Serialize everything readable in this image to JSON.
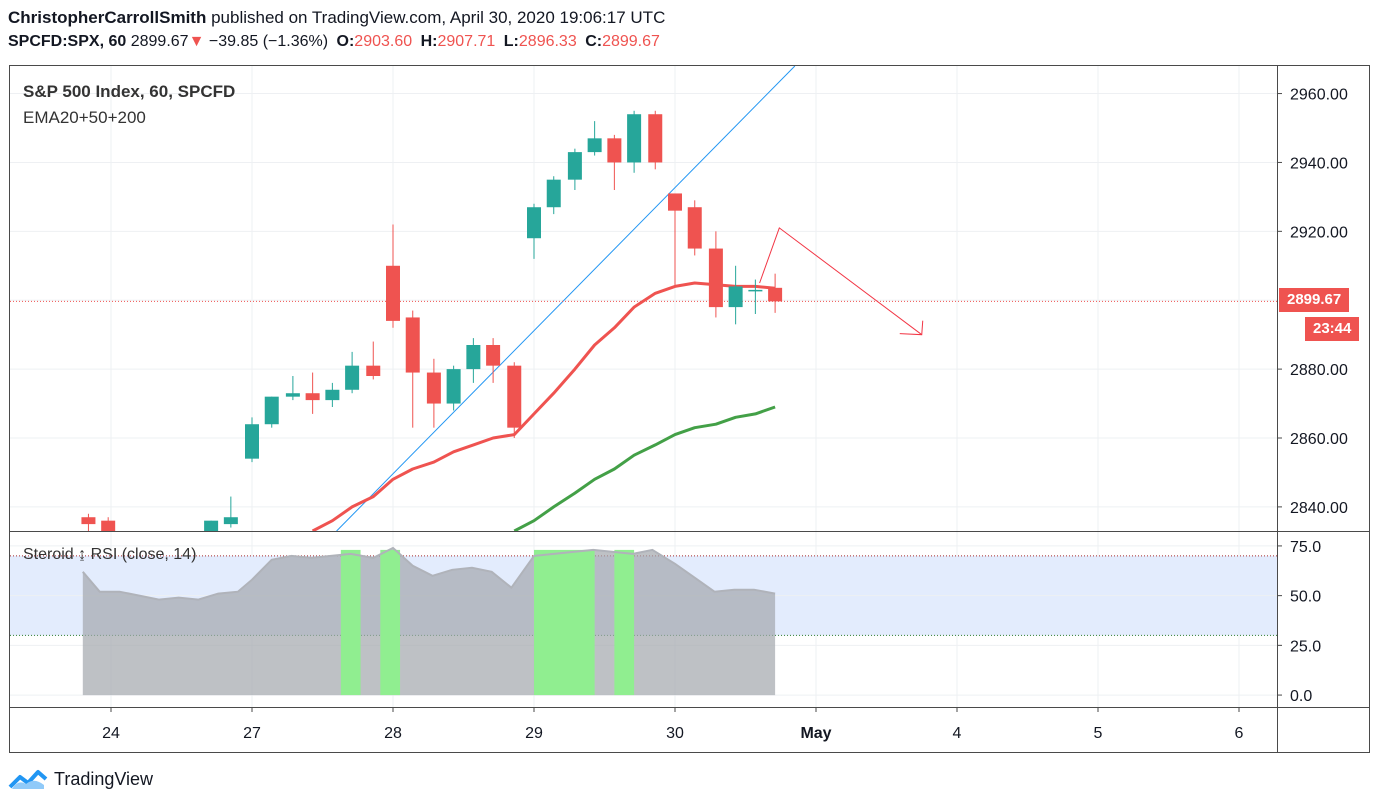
{
  "header": {
    "author": "ChristopherCarrollSmith",
    "published": "published on TradingView.com, April 30, 2020 19:06:17 UTC",
    "symbol": "SPCFD:SPX, 60",
    "last": "2899.67",
    "change": "−39.85 (−1.36%)",
    "o_label": "O:",
    "o": "2903.60",
    "h_label": "H:",
    "h": "2907.71",
    "l_label": "L:",
    "l": "2896.33",
    "c_label": "C:",
    "c": "2899.67"
  },
  "legend": {
    "title": "S&P 500 Index, 60, SPCFD",
    "indicator": "EMA20+50+200",
    "rsi": "Steroid ↨ RSI (close, 14)"
  },
  "price_tag": "2899.67",
  "countdown_tag": "23:44",
  "footer": {
    "brand": "TradingView"
  },
  "colors": {
    "up": "#26a69a",
    "down": "#ef5350",
    "ema20": "#ef5350",
    "ema50": "#43a047",
    "trendline": "#2196f3",
    "rsi_fill": "#b2b5be",
    "rsi_band": "#e3ecfd",
    "rsi_high": "#90ee90"
  },
  "chart_data": {
    "type": "candlestick",
    "x_tick_labels": [
      "24",
      "27",
      "28",
      "29",
      "30",
      "May",
      "4",
      "5",
      "6"
    ],
    "y_ticks": [
      2840,
      2860,
      2880,
      2900,
      2920,
      2940,
      2960
    ],
    "y_tick_labels": [
      "2840.00",
      "2860.00",
      "2880.00",
      "2920.00",
      "2940.00",
      "2960.00"
    ],
    "ylim": [
      2833,
      2968
    ],
    "last_price": 2899.67,
    "candles": [
      {
        "x": -0.16,
        "o": 2837,
        "h": 2838,
        "l": 2833,
        "c": 2835
      },
      {
        "x": -0.02,
        "o": 2836,
        "h": 2837,
        "l": 2833,
        "c": 2833
      },
      {
        "x": 0.71,
        "o": 2833,
        "h": 2836,
        "l": 2833,
        "c": 2836
      },
      {
        "x": 0.85,
        "o": 2835,
        "h": 2843,
        "l": 2834,
        "c": 2837
      },
      {
        "x": 1.0,
        "o": 2854,
        "h": 2866,
        "l": 2853,
        "c": 2864
      },
      {
        "x": 1.14,
        "o": 2864,
        "h": 2872,
        "l": 2863,
        "c": 2872
      },
      {
        "x": 1.29,
        "o": 2872,
        "h": 2878,
        "l": 2871,
        "c": 2873
      },
      {
        "x": 1.43,
        "o": 2873,
        "h": 2879,
        "l": 2867,
        "c": 2871
      },
      {
        "x": 1.57,
        "o": 2871,
        "h": 2876,
        "l": 2869,
        "c": 2874
      },
      {
        "x": 1.71,
        "o": 2874,
        "h": 2885,
        "l": 2873,
        "c": 2881
      },
      {
        "x": 1.86,
        "o": 2881,
        "h": 2888,
        "l": 2877,
        "c": 2878
      },
      {
        "x": 2.0,
        "o": 2910,
        "h": 2922,
        "l": 2892,
        "c": 2894
      },
      {
        "x": 2.14,
        "o": 2895,
        "h": 2897,
        "l": 2863,
        "c": 2879
      },
      {
        "x": 2.29,
        "o": 2879,
        "h": 2883,
        "l": 2863,
        "c": 2870
      },
      {
        "x": 2.43,
        "o": 2870,
        "h": 2881,
        "l": 2868,
        "c": 2880
      },
      {
        "x": 2.57,
        "o": 2880,
        "h": 2889,
        "l": 2876,
        "c": 2887
      },
      {
        "x": 2.71,
        "o": 2887,
        "h": 2889,
        "l": 2876,
        "c": 2881
      },
      {
        "x": 2.86,
        "o": 2881,
        "h": 2882,
        "l": 2860,
        "c": 2863
      },
      {
        "x": 3.0,
        "o": 2918,
        "h": 2928,
        "l": 2912,
        "c": 2927
      },
      {
        "x": 3.14,
        "o": 2927,
        "h": 2936,
        "l": 2925,
        "c": 2935
      },
      {
        "x": 3.29,
        "o": 2935,
        "h": 2944,
        "l": 2932,
        "c": 2943
      },
      {
        "x": 3.43,
        "o": 2943,
        "h": 2952,
        "l": 2942,
        "c": 2947
      },
      {
        "x": 3.57,
        "o": 2947,
        "h": 2948,
        "l": 2932,
        "c": 2940
      },
      {
        "x": 3.71,
        "o": 2940,
        "h": 2955,
        "l": 2937,
        "c": 2954
      },
      {
        "x": 3.86,
        "o": 2954,
        "h": 2955,
        "l": 2938,
        "c": 2940
      },
      {
        "x": 4.0,
        "o": 2931,
        "h": 2931,
        "l": 2904,
        "c": 2926
      },
      {
        "x": 4.14,
        "o": 2927,
        "h": 2929,
        "l": 2913,
        "c": 2915
      },
      {
        "x": 4.29,
        "o": 2915,
        "h": 2920,
        "l": 2895,
        "c": 2898
      },
      {
        "x": 4.43,
        "o": 2898,
        "h": 2910,
        "l": 2893,
        "c": 2904
      },
      {
        "x": 4.57,
        "o": 2903,
        "h": 2906,
        "l": 2896,
        "c": 2903
      },
      {
        "x": 4.71,
        "o": 2903.6,
        "h": 2907.71,
        "l": 2896.33,
        "c": 2899.67
      }
    ],
    "ema20": {
      "x": [
        1.43,
        1.57,
        1.71,
        1.86,
        2.0,
        2.14,
        2.29,
        2.43,
        2.57,
        2.71,
        2.86,
        3.0,
        3.14,
        3.29,
        3.43,
        3.57,
        3.71,
        3.86,
        4.0,
        4.14,
        4.29,
        4.43,
        4.57,
        4.71
      ],
      "y": [
        2833,
        2836,
        2840,
        2843,
        2848,
        2851,
        2853,
        2856,
        2858,
        2860,
        2861,
        2867,
        2873,
        2880,
        2887,
        2892,
        2898,
        2902,
        2904,
        2905,
        2904.5,
        2904,
        2904,
        2903.5
      ]
    },
    "ema50": {
      "x": [
        2.86,
        3.0,
        3.14,
        3.29,
        3.43,
        3.57,
        3.71,
        3.86,
        4.0,
        4.14,
        4.29,
        4.43,
        4.57,
        4.71
      ],
      "y": [
        2833,
        2836,
        2840,
        2844,
        2848,
        2851,
        2855,
        2858,
        2861,
        2863,
        2864,
        2866,
        2867,
        2869
      ]
    },
    "trendline": {
      "x": [
        1.6,
        4.85
      ],
      "y": [
        2833,
        2968
      ]
    },
    "projection": {
      "x": [
        4.6,
        4.74,
        5.75
      ],
      "y": [
        2905,
        2921,
        2890
      ]
    },
    "rsi": {
      "ylim": [
        -6,
        82
      ],
      "y_ticks": [
        0,
        25,
        50,
        75
      ],
      "y_tick_labels": [
        "0.0",
        "25.0",
        "50.0",
        "75.0"
      ],
      "band": [
        30,
        70
      ],
      "x": [
        -0.2,
        -0.08,
        0.06,
        0.2,
        0.34,
        0.48,
        0.62,
        0.76,
        0.9,
        1.0,
        1.14,
        1.28,
        1.42,
        1.56,
        1.7,
        1.86,
        2.0,
        2.14,
        2.28,
        2.42,
        2.56,
        2.7,
        2.84,
        3.0,
        3.14,
        3.28,
        3.42,
        3.56,
        3.7,
        3.84,
        4.0,
        4.14,
        4.28,
        4.42,
        4.56,
        4.71
      ],
      "y": [
        62,
        52,
        52,
        50,
        48,
        49,
        48,
        51,
        52,
        58,
        68,
        70,
        69,
        70,
        71,
        69,
        74,
        65,
        60,
        63,
        64,
        62,
        54,
        70,
        71,
        72,
        73,
        72,
        71,
        73,
        66,
        59,
        52,
        53,
        53,
        51
      ],
      "overbought_zones": [
        [
          1.63,
          1.77
        ],
        [
          1.91,
          2.05
        ],
        [
          3.0,
          3.43
        ],
        [
          3.57,
          3.71
        ]
      ]
    }
  }
}
